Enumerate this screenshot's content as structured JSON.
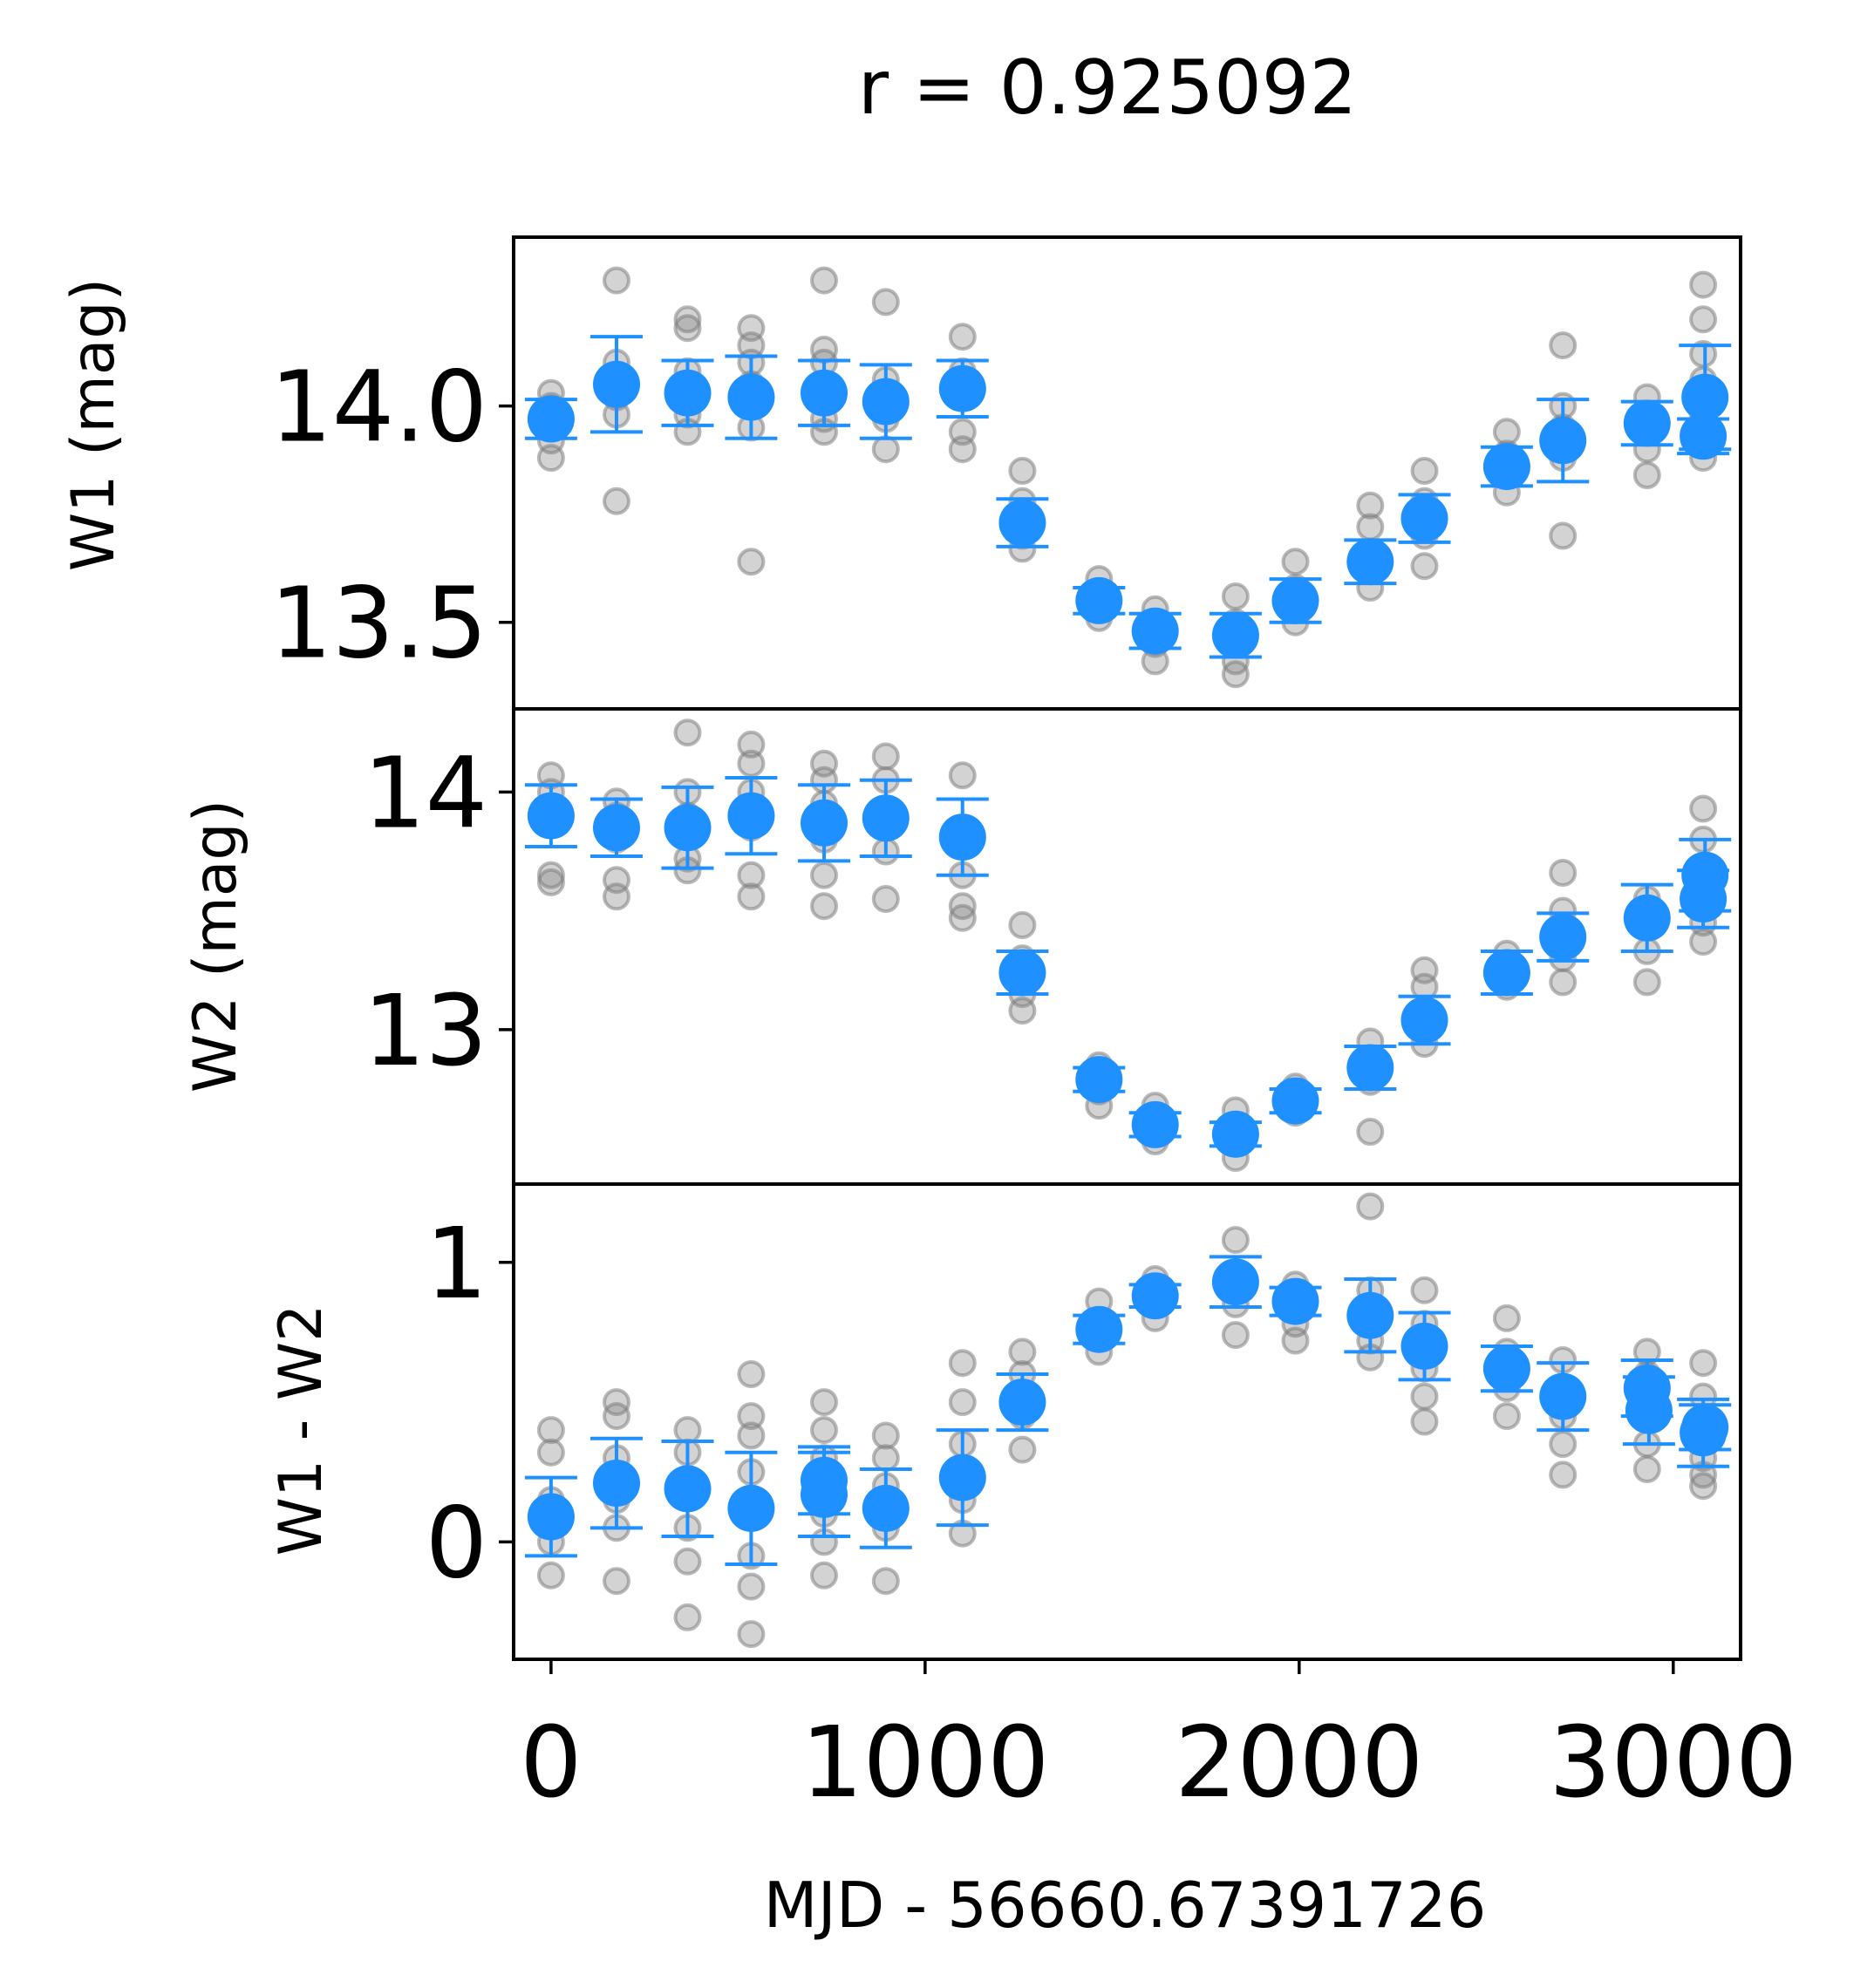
{
  "chart_data": {
    "type": "scatter",
    "title": "r = 0.925092",
    "xlabel": "MJD - 56660.67391726",
    "xlim": [
      -100,
      3180
    ],
    "xticks": [
      0,
      1000,
      2000,
      3000
    ],
    "xtick_labels": [
      "0",
      "1000",
      "2000",
      "3000"
    ],
    "colors": {
      "raw_points": "#808080",
      "binned_points": "#1e90ff",
      "axes": "#000000"
    },
    "grid": false,
    "legend": "none",
    "panels": [
      {
        "ylabel": "W1 (mag)",
        "ylim": [
          13.3,
          14.39
        ],
        "yticks": [
          13.5,
          14.0
        ],
        "ytick_labels": [
          "13.5",
          "14.0"
        ],
        "series": [
          {
            "kind": "binned",
            "x": [
              0,
              175,
              365,
              535,
              730,
              895,
              1100,
              1260,
              1465,
              1615,
              1830,
              1990,
              2190,
              2335,
              2555,
              2705,
              2930,
              3080,
              3085
            ],
            "y": [
              13.97,
              14.05,
              14.03,
              14.02,
              14.03,
              14.01,
              14.04,
              13.73,
              13.55,
              13.48,
              13.47,
              13.55,
              13.64,
              13.74,
              13.86,
              13.92,
              13.96,
              13.93,
              14.02
            ],
            "yerr": [
              0.045,
              0.11,
              0.075,
              0.095,
              0.075,
              0.085,
              0.065,
              0.055,
              0.03,
              0.04,
              0.05,
              0.05,
              0.05,
              0.055,
              0.045,
              0.095,
              0.05,
              0.04,
              0.12
            ]
          },
          {
            "kind": "raw",
            "x": [
              0,
              0,
              0,
              0,
              0,
              0,
              175,
              175,
              175,
              175,
              175,
              175,
              365,
              365,
              365,
              365,
              365,
              365,
              535,
              535,
              535,
              535,
              535,
              535,
              535,
              730,
              730,
              730,
              730,
              730,
              730,
              730,
              895,
              895,
              895,
              895,
              895,
              1100,
              1100,
              1100,
              1100,
              1100,
              1260,
              1260,
              1260,
              1260,
              1260,
              1465,
              1465,
              1465,
              1465,
              1615,
              1615,
              1615,
              1615,
              1830,
              1830,
              1830,
              1830,
              1830,
              1990,
              1990,
              1990,
              1990,
              2190,
              2190,
              2190,
              2190,
              2190,
              2335,
              2335,
              2335,
              2335,
              2335,
              2555,
              2555,
              2555,
              2555,
              2705,
              2705,
              2705,
              2705,
              2705,
              2930,
              2930,
              2930,
              2930,
              2930,
              3080,
              3080,
              3080,
              3080,
              3080,
              3080,
              3080
            ],
            "y": [
              14.03,
              14.0,
              13.98,
              13.95,
              13.92,
              13.88,
              14.29,
              14.1,
              14.07,
              14.02,
              13.98,
              13.78,
              14.2,
              14.18,
              14.08,
              14.03,
              13.98,
              13.94,
              14.18,
              14.14,
              14.1,
              14.05,
              14.0,
              13.95,
              13.64,
              14.29,
              14.13,
              14.1,
              14.05,
              14.02,
              13.97,
              13.94,
              14.24,
              14.06,
              14.02,
              13.97,
              13.9,
              14.16,
              14.08,
              14.04,
              13.94,
              13.9,
              13.85,
              13.78,
              13.74,
              13.7,
              13.67,
              13.6,
              13.57,
              13.55,
              13.51,
              13.53,
              13.49,
              13.45,
              13.41,
              13.56,
              13.5,
              13.46,
              13.41,
              13.38,
              13.64,
              13.58,
              13.54,
              13.5,
              13.77,
              13.72,
              13.66,
              13.62,
              13.58,
              13.85,
              13.78,
              13.74,
              13.7,
              13.63,
              13.94,
              13.89,
              13.85,
              13.8,
              14.14,
              14.0,
              13.95,
              13.88,
              13.7,
              14.02,
              13.98,
              13.95,
              13.9,
              13.84,
              14.28,
              14.2,
              14.12,
              14.06,
              13.98,
              13.92,
              13.88
            ]
          }
        ]
      },
      {
        "ylabel": "W2 (mag)",
        "ylim": [
          12.35,
          14.35
        ],
        "yticks": [
          13,
          14
        ],
        "ytick_labels": [
          "13",
          "14"
        ],
        "series": [
          {
            "kind": "binned",
            "x": [
              0,
              175,
              365,
              535,
              730,
              895,
              1100,
              1260,
              1465,
              1615,
              1830,
              1990,
              2190,
              2335,
              2555,
              2705,
              2930,
              3080,
              3085
            ],
            "y": [
              13.9,
              13.85,
              13.85,
              13.9,
              13.87,
              13.89,
              13.81,
              13.24,
              12.79,
              12.6,
              12.56,
              12.7,
              12.84,
              13.04,
              13.24,
              13.39,
              13.47,
              13.55,
              13.65
            ],
            "yerr": [
              0.13,
              0.12,
              0.17,
              0.16,
              0.16,
              0.16,
              0.16,
              0.09,
              0.05,
              0.05,
              0.05,
              0.05,
              0.09,
              0.1,
              0.09,
              0.1,
              0.14,
              0.12,
              0.15
            ]
          },
          {
            "kind": "raw",
            "x": [
              0,
              0,
              0,
              0,
              0,
              175,
              175,
              175,
              175,
              175,
              365,
              365,
              365,
              365,
              365,
              535,
              535,
              535,
              535,
              535,
              535,
              730,
              730,
              730,
              730,
              730,
              730,
              895,
              895,
              895,
              895,
              895,
              1100,
              1100,
              1100,
              1100,
              1100,
              1260,
              1260,
              1260,
              1260,
              1465,
              1465,
              1465,
              1465,
              1615,
              1615,
              1615,
              1830,
              1830,
              1830,
              1830,
              1990,
              1990,
              1990,
              2190,
              2190,
              2190,
              2190,
              2335,
              2335,
              2335,
              2335,
              2555,
              2555,
              2555,
              2705,
              2705,
              2705,
              2705,
              2930,
              2930,
              2930,
              2930,
              3080,
              3080,
              3080,
              3080,
              3080
            ],
            "y": [
              14.07,
              14.0,
              13.92,
              13.65,
              13.62,
              13.96,
              13.9,
              13.8,
              13.63,
              13.56,
              14.25,
              14.0,
              13.9,
              13.72,
              13.67,
              14.2,
              14.12,
              14.0,
              13.85,
              13.65,
              13.56,
              14.12,
              14.05,
              13.95,
              13.8,
              13.65,
              13.52,
              14.15,
              14.05,
              13.92,
              13.75,
              13.55,
              14.07,
              13.8,
              13.65,
              13.52,
              13.47,
              13.44,
              13.3,
              13.15,
              13.08,
              12.85,
              12.8,
              12.74,
              12.68,
              12.68,
              12.6,
              12.53,
              12.66,
              12.58,
              12.52,
              12.46,
              12.76,
              12.7,
              12.65,
              12.95,
              12.88,
              12.78,
              12.57,
              13.25,
              13.18,
              13.0,
              12.94,
              13.32,
              13.25,
              13.18,
              13.66,
              13.5,
              13.3,
              13.2,
              13.55,
              13.45,
              13.33,
              13.2,
              13.93,
              13.8,
              13.6,
              13.45,
              13.37
            ]
          }
        ]
      },
      {
        "ylabel": "W1 - W2",
        "ylim": [
          -0.42,
          1.28
        ],
        "yticks": [
          0,
          1
        ],
        "ytick_labels": [
          "0",
          "1"
        ],
        "series": [
          {
            "kind": "binned",
            "x": [
              0,
              175,
              365,
              535,
              730,
              730,
              895,
              1100,
              1260,
              1465,
              1615,
              1830,
              1990,
              2190,
              2335,
              2555,
              2705,
              2930,
              2935,
              3080,
              3085
            ],
            "y": [
              0.09,
              0.21,
              0.19,
              0.12,
              0.17,
              0.22,
              0.12,
              0.23,
              0.5,
              0.76,
              0.88,
              0.93,
              0.86,
              0.81,
              0.7,
              0.62,
              0.52,
              0.55,
              0.47,
              0.39,
              0.41
            ],
            "yerr": [
              0.14,
              0.16,
              0.17,
              0.2,
              0.15,
              0.12,
              0.14,
              0.17,
              0.1,
              0.05,
              0.04,
              0.09,
              0.05,
              0.13,
              0.12,
              0.08,
              0.12,
              0.1,
              0.12,
              0.12,
              0.08
            ]
          },
          {
            "kind": "raw",
            "x": [
              0,
              0,
              0,
              0,
              0,
              175,
              175,
              175,
              175,
              175,
              175,
              365,
              365,
              365,
              365,
              365,
              365,
              535,
              535,
              535,
              535,
              535,
              535,
              535,
              535,
              730,
              730,
              730,
              730,
              730,
              730,
              730,
              895,
              895,
              895,
              895,
              895,
              1100,
              1100,
              1100,
              1100,
              1100,
              1260,
              1260,
              1260,
              1260,
              1465,
              1465,
              1465,
              1615,
              1615,
              1615,
              1830,
              1830,
              1830,
              1830,
              1990,
              1990,
              1990,
              1990,
              2190,
              2190,
              2190,
              2190,
              2190,
              2335,
              2335,
              2335,
              2335,
              2335,
              2555,
              2555,
              2555,
              2555,
              2705,
              2705,
              2705,
              2705,
              2705,
              2930,
              2930,
              2930,
              2930,
              2930,
              3080,
              3080,
              3080,
              3080,
              3080,
              3080
            ],
            "y": [
              0.4,
              0.32,
              0.15,
              0.0,
              -0.12,
              0.5,
              0.45,
              0.3,
              0.15,
              0.05,
              -0.14,
              0.4,
              0.32,
              0.2,
              0.05,
              -0.07,
              -0.27,
              0.6,
              0.45,
              0.38,
              0.25,
              0.1,
              -0.05,
              -0.16,
              -0.33,
              0.5,
              0.4,
              0.3,
              0.2,
              0.1,
              0.0,
              -0.12,
              0.38,
              0.3,
              0.2,
              0.05,
              -0.14,
              0.64,
              0.5,
              0.35,
              0.15,
              0.03,
              0.68,
              0.6,
              0.45,
              0.33,
              0.86,
              0.78,
              0.68,
              0.94,
              0.88,
              0.8,
              1.08,
              0.95,
              0.85,
              0.74,
              0.92,
              0.85,
              0.78,
              0.72,
              1.2,
              0.9,
              0.8,
              0.72,
              0.66,
              0.9,
              0.78,
              0.62,
              0.52,
              0.43,
              0.8,
              0.68,
              0.55,
              0.45,
              0.65,
              0.55,
              0.45,
              0.35,
              0.24,
              0.68,
              0.6,
              0.5,
              0.35,
              0.26,
              0.64,
              0.52,
              0.4,
              0.3,
              0.24,
              0.2
            ]
          }
        ]
      }
    ]
  }
}
